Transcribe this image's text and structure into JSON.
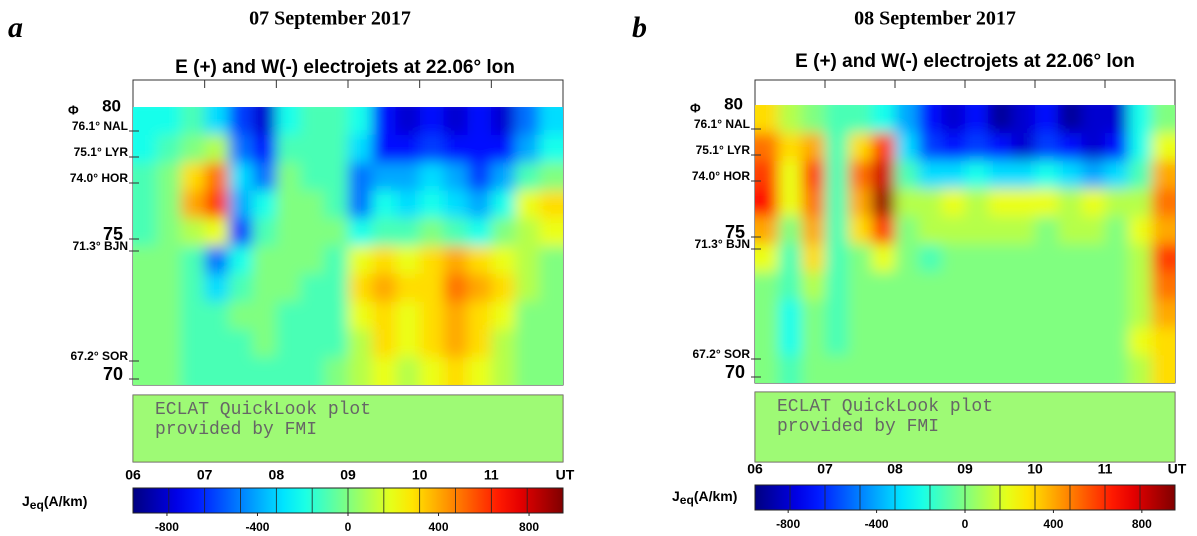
{
  "chart_data": [
    {
      "type": "heatmap",
      "panel_label": "a",
      "title": "07 September 2017",
      "subtitle": "E (+) and W(-) electrojets at 22.06° lon",
      "y_labels": [
        "Φ",
        "80",
        "76.1° NAL",
        "75.1° LYR",
        "74.0° HOR",
        "75",
        "71.3° BJN",
        "67.2° SOR",
        "70"
      ],
      "x_labels": [
        "06",
        "07",
        "08",
        "09",
        "10",
        "11",
        "UT"
      ],
      "note": [
        "ECLAT QuickLook plot",
        "provided by FMI"
      ],
      "colorbar_label": {
        "symbol": "J",
        "subscript": "eq",
        "unit": "(A/km)"
      },
      "clim": [
        -950,
        950
      ],
      "colorbar_ticks": [
        -800,
        -400,
        0,
        400,
        800
      ],
      "values": [
        [
          -200,
          -200,
          -100,
          -300,
          -600,
          -800,
          -200,
          -100,
          -100,
          -200,
          -700,
          -800,
          -700,
          -800,
          -700,
          -800,
          -500,
          -300
        ],
        [
          -200,
          -100,
          0,
          100,
          -500,
          -700,
          -100,
          -100,
          -100,
          -300,
          -700,
          -700,
          -600,
          -700,
          -700,
          -700,
          -400,
          -200
        ],
        [
          -100,
          0,
          300,
          500,
          -300,
          -500,
          0,
          -100,
          -100,
          -500,
          -400,
          -400,
          -300,
          -400,
          -600,
          -400,
          -100,
          0
        ],
        [
          -100,
          0,
          400,
          600,
          -400,
          -200,
          0,
          0,
          -100,
          -500,
          -200,
          -300,
          -200,
          -300,
          -400,
          -200,
          200,
          300
        ],
        [
          -100,
          0,
          100,
          200,
          -600,
          -100,
          0,
          0,
          0,
          -200,
          -100,
          -100,
          0,
          -100,
          -200,
          0,
          100,
          200
        ],
        [
          0,
          0,
          -100,
          -500,
          -200,
          0,
          0,
          0,
          -100,
          200,
          300,
          200,
          300,
          400,
          300,
          200,
          100,
          0
        ],
        [
          0,
          0,
          -100,
          -300,
          -100,
          0,
          0,
          -100,
          -100,
          300,
          400,
          300,
          300,
          500,
          400,
          300,
          100,
          0
        ],
        [
          0,
          0,
          -100,
          -100,
          0,
          0,
          -100,
          -100,
          -100,
          200,
          300,
          200,
          300,
          400,
          300,
          200,
          0,
          0
        ],
        [
          0,
          0,
          -100,
          -100,
          -100,
          0,
          -100,
          -100,
          -100,
          100,
          300,
          200,
          300,
          400,
          300,
          100,
          0,
          0
        ],
        [
          0,
          0,
          -100,
          -100,
          -100,
          -100,
          -100,
          -100,
          0,
          100,
          200,
          100,
          200,
          300,
          200,
          100,
          0,
          0
        ]
      ]
    },
    {
      "type": "heatmap",
      "panel_label": "b",
      "title": "08 September 2017",
      "subtitle": "E (+) and W(-) electrojets at 22.06° lon",
      "y_labels": [
        "Φ",
        "80",
        "76.1° NAL",
        "75.1° LYR",
        "74.0° HOR",
        "75",
        "71.3° BJN",
        "67.2° SOR",
        "70"
      ],
      "x_labels": [
        "06",
        "07",
        "08",
        "09",
        "10",
        "11",
        "UT"
      ],
      "note": [
        "ECLAT QuickLook plot",
        "provided by FMI"
      ],
      "colorbar_label": {
        "symbol": "J",
        "subscript": "eq",
        "unit": "(A/km)"
      },
      "clim": [
        -950,
        950
      ],
      "colorbar_ticks": [
        -800,
        -400,
        0,
        400,
        800
      ],
      "values": [
        [
          300,
          100,
          0,
          -100,
          -100,
          -200,
          -400,
          -700,
          -800,
          -700,
          -900,
          -800,
          -700,
          -900,
          -800,
          -800,
          -200,
          0
        ],
        [
          500,
          300,
          400,
          -100,
          300,
          600,
          -300,
          -600,
          -700,
          -600,
          -700,
          -800,
          -600,
          -700,
          -800,
          -700,
          -200,
          200
        ],
        [
          600,
          200,
          600,
          -100,
          500,
          800,
          -100,
          -300,
          -300,
          -200,
          -300,
          -300,
          -200,
          -300,
          -400,
          -300,
          -100,
          400
        ],
        [
          700,
          200,
          500,
          -100,
          400,
          900,
          100,
          100,
          200,
          100,
          200,
          200,
          200,
          100,
          200,
          100,
          100,
          500
        ],
        [
          400,
          0,
          400,
          -100,
          300,
          600,
          0,
          100,
          100,
          100,
          100,
          100,
          0,
          100,
          100,
          0,
          200,
          400
        ],
        [
          200,
          -100,
          300,
          -100,
          0,
          200,
          0,
          -100,
          0,
          0,
          0,
          0,
          0,
          0,
          0,
          0,
          100,
          600
        ],
        [
          0,
          -100,
          100,
          -100,
          0,
          0,
          0,
          0,
          0,
          0,
          0,
          0,
          0,
          0,
          0,
          0,
          100,
          500
        ],
        [
          0,
          -200,
          0,
          -100,
          0,
          0,
          0,
          0,
          0,
          0,
          0,
          0,
          0,
          0,
          0,
          0,
          100,
          400
        ],
        [
          0,
          -200,
          0,
          -100,
          0,
          0,
          0,
          0,
          0,
          0,
          0,
          0,
          0,
          0,
          0,
          0,
          200,
          300
        ],
        [
          0,
          -100,
          0,
          0,
          0,
          0,
          0,
          0,
          0,
          0,
          0,
          0,
          0,
          0,
          0,
          0,
          100,
          300
        ]
      ]
    }
  ]
}
